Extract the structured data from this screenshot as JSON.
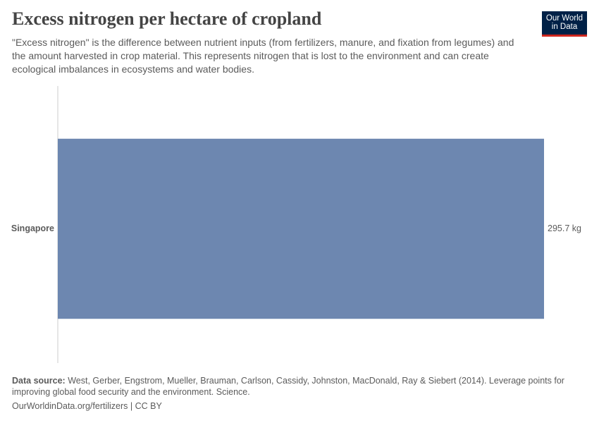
{
  "chart_data": {
    "type": "bar",
    "title": "Excess nitrogen per hectare of cropland",
    "subtitle": "\"Excess nitrogen\" is the difference between nutrient inputs (from fertilizers, manure, and fixation from legumes) and the amount harvested in crop material. This represents nitrogen that is lost to the environment and can create ecological imbalances in ecosystems and water bodies.",
    "categories": [
      "Singapore"
    ],
    "values": [
      295.7
    ],
    "value_labels": [
      "295.7 kg"
    ],
    "color": "#6d87b0",
    "source_label": "Data source:",
    "source_text": "West, Gerber, Engstrom, Mueller, Brauman, Carlson, Cassidy, Johnston, MacDonald, Ray & Siebert (2014). Leverage points for improving global food security and the environment. Science.",
    "footer": "OurWorldinData.org/fertilizers | CC BY",
    "logo": [
      "Our World",
      "in Data"
    ]
  }
}
